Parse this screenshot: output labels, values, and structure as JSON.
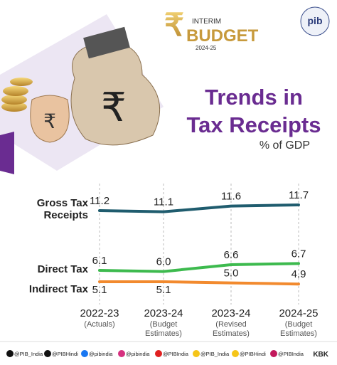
{
  "header": {
    "badge_top": "INTERIM",
    "badge_main": "BUDGET",
    "badge_year": "2024-25",
    "logo": "pib"
  },
  "chart_data": {
    "type": "line",
    "title": "Trends in Tax Receipts",
    "unit": "% of GDP",
    "categories": [
      "2022-23",
      "2023-24",
      "2023-24",
      "2024-25"
    ],
    "category_notes": [
      "(Actuals)",
      "(Budget Estimates)",
      "(Revised Estimates)",
      "(Budget Estimates)"
    ],
    "series": [
      {
        "name": "Gross Tax Receipts",
        "color": "#1f5c6e",
        "values": [
          11.2,
          11.1,
          11.6,
          11.7
        ]
      },
      {
        "name": "Direct Tax",
        "color": "#3dba4e",
        "values": [
          6.1,
          6.0,
          6.6,
          6.7
        ],
        "value_labels": [
          "6.1",
          "6.0",
          "6.6",
          "6.7"
        ]
      },
      {
        "name": "Indirect Tax",
        "color": "#f28a2e",
        "values": [
          5.1,
          5.1,
          5.0,
          4.9
        ],
        "value_labels": [
          "5.1",
          "5.1",
          "5.0",
          "4.9"
        ]
      }
    ]
  },
  "footer": {
    "handles": [
      "@PIB_India",
      "@PIBHindi",
      "@pibindia",
      "@pibindia",
      "@PIBIndia",
      "@PIB_India",
      "@PIBHindi",
      "@PIBIndia"
    ],
    "credit": "KBK"
  }
}
